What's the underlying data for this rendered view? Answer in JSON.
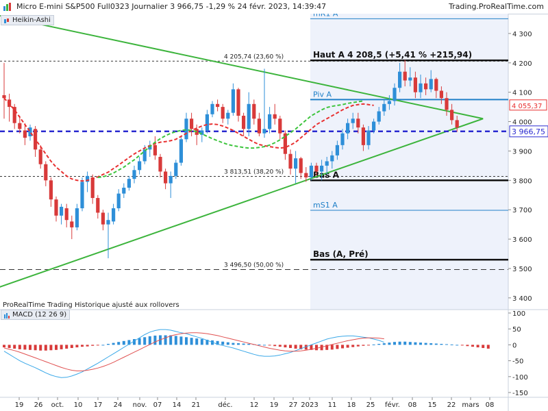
{
  "header": {
    "title": "Micro E-mini S&P500 Full0323 Journalier 3 966,75 -1,29 % 24 févr. 2023, 14:39:47",
    "site": "Trading.ProRealTime.com"
  },
  "main_panel": {
    "tag": "Heikin-Ashi",
    "footer_note": "ProRealTime Trading  Historique ajusté aux rollovers"
  },
  "macd_panel": {
    "tag": "MACD (12 26 9)"
  },
  "colors": {
    "bull": "#2e8fd8",
    "bear": "#d83a3a",
    "trend": "#3cb43c",
    "ma_red": "#e83030",
    "ma_green": "#3cc43c",
    "level_blue": "#2080c8",
    "price_line": "#2a2ad0",
    "macd_line": "#3aa8e8",
    "signal_line": "#e05050"
  },
  "chart_data": [
    {
      "type": "candlestick",
      "subtype": "heikin-ashi",
      "y_axis_ticks": [
        "3 400",
        "3 500",
        "3 600",
        "3 700",
        "3 800",
        "3 900",
        "4 000",
        "4 100",
        "4 200",
        "4 300"
      ],
      "ylim": [
        3360,
        4365
      ],
      "x_ticks": [
        "19",
        "26",
        "oct.",
        "10",
        "17",
        "24",
        "nov.",
        "07",
        "14",
        "21",
        "déc.",
        "12",
        "19",
        "27",
        "2023",
        "11",
        "18",
        "25",
        "févr.",
        "08",
        "15",
        "22",
        "mars",
        "08"
      ],
      "current_price_label": "3 966,75",
      "current_price": 3966.75,
      "ma_label": "4 055,37",
      "ma_value": 4055.37,
      "levels": [
        {
          "name": "mR1 A",
          "value": 4350
        },
        {
          "name": "Haut A 4 208,5 (+5,41 % +215,94)",
          "value": 4208.5
        },
        {
          "name": "Piv A",
          "value": 4075
        },
        {
          "name": "Bas A",
          "value": 3800
        },
        {
          "name": "mS1 A",
          "value": 3698
        },
        {
          "name": "Bas (A, Pré)",
          "value": 3530
        }
      ],
      "fibonacci": [
        {
          "label": "4 205,74 (23,60 %)",
          "value": 4205.74
        },
        {
          "label": "3 813,51 (38,20 %)",
          "value": 3813.51
        },
        {
          "label": "3 496,50 (50,00 %)",
          "value": 3496.5
        }
      ],
      "candles": [
        {
          "o": 4090,
          "h": 4200,
          "l": 4010,
          "c": 4080
        },
        {
          "o": 4075,
          "h": 4095,
          "l": 4000,
          "c": 4050
        },
        {
          "o": 4050,
          "h": 4060,
          "l": 3975,
          "c": 3995
        },
        {
          "o": 3995,
          "h": 4020,
          "l": 3960,
          "c": 3975
        },
        {
          "o": 3970,
          "h": 3995,
          "l": 3920,
          "c": 3945
        },
        {
          "o": 3950,
          "h": 3990,
          "l": 3935,
          "c": 3980
        },
        {
          "o": 3975,
          "h": 3985,
          "l": 3880,
          "c": 3905
        },
        {
          "o": 3905,
          "h": 3920,
          "l": 3840,
          "c": 3855
        },
        {
          "o": 3855,
          "h": 3865,
          "l": 3780,
          "c": 3800
        },
        {
          "o": 3800,
          "h": 3810,
          "l": 3710,
          "c": 3735
        },
        {
          "o": 3735,
          "h": 3745,
          "l": 3660,
          "c": 3680
        },
        {
          "o": 3680,
          "h": 3720,
          "l": 3650,
          "c": 3710
        },
        {
          "o": 3705,
          "h": 3720,
          "l": 3640,
          "c": 3665
        },
        {
          "o": 3660,
          "h": 3680,
          "l": 3600,
          "c": 3640
        },
        {
          "o": 3640,
          "h": 3720,
          "l": 3630,
          "c": 3705
        },
        {
          "o": 3705,
          "h": 3810,
          "l": 3695,
          "c": 3795
        },
        {
          "o": 3795,
          "h": 3830,
          "l": 3760,
          "c": 3815
        },
        {
          "o": 3810,
          "h": 3820,
          "l": 3720,
          "c": 3740
        },
        {
          "o": 3740,
          "h": 3750,
          "l": 3670,
          "c": 3690
        },
        {
          "o": 3690,
          "h": 3700,
          "l": 3630,
          "c": 3650
        },
        {
          "o": 3650,
          "h": 3690,
          "l": 3535,
          "c": 3665
        },
        {
          "o": 3660,
          "h": 3720,
          "l": 3650,
          "c": 3705
        },
        {
          "o": 3705,
          "h": 3770,
          "l": 3695,
          "c": 3755
        },
        {
          "o": 3755,
          "h": 3790,
          "l": 3740,
          "c": 3775
        },
        {
          "o": 3775,
          "h": 3815,
          "l": 3765,
          "c": 3805
        },
        {
          "o": 3805,
          "h": 3850,
          "l": 3790,
          "c": 3835
        },
        {
          "o": 3835,
          "h": 3880,
          "l": 3820,
          "c": 3865
        },
        {
          "o": 3865,
          "h": 3920,
          "l": 3855,
          "c": 3905
        },
        {
          "o": 3905,
          "h": 3935,
          "l": 3880,
          "c": 3920
        },
        {
          "o": 3920,
          "h": 3950,
          "l": 3870,
          "c": 3885
        },
        {
          "o": 3880,
          "h": 3890,
          "l": 3810,
          "c": 3830
        },
        {
          "o": 3830,
          "h": 3840,
          "l": 3770,
          "c": 3790
        },
        {
          "o": 3790,
          "h": 3830,
          "l": 3740,
          "c": 3815
        },
        {
          "o": 3815,
          "h": 3870,
          "l": 3805,
          "c": 3860
        },
        {
          "o": 3860,
          "h": 3950,
          "l": 3850,
          "c": 3940
        },
        {
          "o": 3940,
          "h": 4030,
          "l": 3930,
          "c": 4010
        },
        {
          "o": 4010,
          "h": 4030,
          "l": 3950,
          "c": 3975
        },
        {
          "o": 3975,
          "h": 3990,
          "l": 3920,
          "c": 3955
        },
        {
          "o": 3955,
          "h": 3980,
          "l": 3930,
          "c": 3970
        },
        {
          "o": 3970,
          "h": 4040,
          "l": 3960,
          "c": 4025
        },
        {
          "o": 4025,
          "h": 4070,
          "l": 4015,
          "c": 4060
        },
        {
          "o": 4060,
          "h": 4075,
          "l": 4035,
          "c": 4050
        },
        {
          "o": 4050,
          "h": 4060,
          "l": 3995,
          "c": 4010
        },
        {
          "o": 4010,
          "h": 4040,
          "l": 3990,
          "c": 4030
        },
        {
          "o": 4030,
          "h": 4130,
          "l": 4020,
          "c": 4110
        },
        {
          "o": 4110,
          "h": 4115,
          "l": 4000,
          "c": 4020
        },
        {
          "o": 4020,
          "h": 4030,
          "l": 3950,
          "c": 3975
        },
        {
          "o": 3975,
          "h": 4100,
          "l": 3950,
          "c": 4060
        },
        {
          "o": 4060,
          "h": 4075,
          "l": 3990,
          "c": 4010
        },
        {
          "o": 4010,
          "h": 4030,
          "l": 3950,
          "c": 3960
        },
        {
          "o": 3960,
          "h": 4180,
          "l": 3945,
          "c": 3975
        },
        {
          "o": 3975,
          "h": 4050,
          "l": 3960,
          "c": 4025
        },
        {
          "o": 4025,
          "h": 4060,
          "l": 3990,
          "c": 4010
        },
        {
          "o": 4010,
          "h": 4020,
          "l": 3940,
          "c": 3960
        },
        {
          "o": 3960,
          "h": 3970,
          "l": 3870,
          "c": 3890
        },
        {
          "o": 3890,
          "h": 3905,
          "l": 3820,
          "c": 3840
        },
        {
          "o": 3840,
          "h": 3900,
          "l": 3790,
          "c": 3875
        },
        {
          "o": 3875,
          "h": 3880,
          "l": 3805,
          "c": 3825
        },
        {
          "o": 3825,
          "h": 3845,
          "l": 3795,
          "c": 3810
        },
        {
          "o": 3810,
          "h": 3860,
          "l": 3800,
          "c": 3850
        },
        {
          "o": 3850,
          "h": 3860,
          "l": 3815,
          "c": 3830
        },
        {
          "o": 3830,
          "h": 3870,
          "l": 3800,
          "c": 3850
        },
        {
          "o": 3850,
          "h": 3880,
          "l": 3820,
          "c": 3865
        },
        {
          "o": 3865,
          "h": 3900,
          "l": 3840,
          "c": 3885
        },
        {
          "o": 3885,
          "h": 3935,
          "l": 3870,
          "c": 3920
        },
        {
          "o": 3920,
          "h": 3975,
          "l": 3905,
          "c": 3960
        },
        {
          "o": 3960,
          "h": 4010,
          "l": 3940,
          "c": 3995
        },
        {
          "o": 3995,
          "h": 4030,
          "l": 3975,
          "c": 4010
        },
        {
          "o": 4010,
          "h": 4030,
          "l": 3960,
          "c": 3980
        },
        {
          "o": 3980,
          "h": 3990,
          "l": 3900,
          "c": 3920
        },
        {
          "o": 3920,
          "h": 3985,
          "l": 3905,
          "c": 3970
        },
        {
          "o": 3970,
          "h": 4010,
          "l": 3960,
          "c": 4000
        },
        {
          "o": 4000,
          "h": 4050,
          "l": 3990,
          "c": 4035
        },
        {
          "o": 4035,
          "h": 4075,
          "l": 4020,
          "c": 4060
        },
        {
          "o": 4060,
          "h": 4090,
          "l": 4040,
          "c": 4070
        },
        {
          "o": 4070,
          "h": 4130,
          "l": 4055,
          "c": 4115
        },
        {
          "o": 4115,
          "h": 4200,
          "l": 4100,
          "c": 4170
        },
        {
          "o": 4170,
          "h": 4210,
          "l": 4120,
          "c": 4140
        },
        {
          "o": 4140,
          "h": 4185,
          "l": 4120,
          "c": 4150
        },
        {
          "o": 4150,
          "h": 4170,
          "l": 4080,
          "c": 4100
        },
        {
          "o": 4100,
          "h": 4160,
          "l": 4080,
          "c": 4130
        },
        {
          "o": 4130,
          "h": 4150,
          "l": 4090,
          "c": 4110
        },
        {
          "o": 4110,
          "h": 4175,
          "l": 4100,
          "c": 4145
        },
        {
          "o": 4145,
          "h": 4150,
          "l": 4080,
          "c": 4105
        },
        {
          "o": 4105,
          "h": 4120,
          "l": 4060,
          "c": 4080
        },
        {
          "o": 4080,
          "h": 4100,
          "l": 4020,
          "c": 4040
        },
        {
          "o": 4040,
          "h": 4060,
          "l": 3990,
          "c": 4005
        },
        {
          "o": 4005,
          "h": 4020,
          "l": 3965,
          "c": 3980
        }
      ],
      "ma_red": [
        4080,
        4060,
        4040,
        4015,
        3990,
        3965,
        3940,
        3915,
        3890,
        3865,
        3845,
        3830,
        3815,
        3805,
        3800,
        3798,
        3800,
        3805,
        3812,
        3820,
        3828,
        3840,
        3852,
        3865,
        3878,
        3890,
        3900,
        3910,
        3918,
        3925,
        3930,
        3932,
        3935,
        3940,
        3950,
        3960,
        3970,
        3978,
        3985,
        3990,
        3992,
        3990,
        3985,
        3978,
        3970,
        3960,
        3950,
        3940,
        3930,
        3922,
        3918,
        3915,
        3912,
        3910,
        3912,
        3920,
        3930,
        3945,
        3960,
        3975,
        3990,
        4000,
        4010,
        4020,
        4030,
        4040,
        4048,
        4055,
        4058,
        4060,
        4058,
        4055
      ],
      "ma_red_start": 0,
      "ma_green": [
        3810,
        3812,
        3818,
        3825,
        3835,
        3845,
        3858,
        3870,
        3885,
        3900,
        3915,
        3930,
        3942,
        3952,
        3960,
        3966,
        3970,
        3972,
        3970,
        3965,
        3958,
        3950,
        3942,
        3935,
        3928,
        3922,
        3918,
        3915,
        3912,
        3910,
        3910,
        3912,
        3915,
        3920,
        3928,
        3938,
        3950,
        3962,
        3975,
        3990,
        4005,
        4020,
        4030,
        4040,
        4048,
        4052,
        4055,
        4058,
        4062,
        4065,
        4068,
        4070
      ],
      "ma_green_start": 18,
      "trendlines": [
        {
          "x1": -2,
          "y1": 4365,
          "x2": 92,
          "y2": 4010
        },
        {
          "x1": -2,
          "y1": 3430,
          "x2": 92,
          "y2": 4010
        }
      ]
    },
    {
      "type": "bar",
      "name": "MACD (12 26 9)",
      "y_axis_ticks": [
        "100",
        "50",
        "0",
        "-50",
        "-100",
        "-150"
      ],
      "ylim": [
        -165,
        115
      ],
      "histogram": [
        -8,
        -10,
        -12,
        -14,
        -15,
        -16,
        -17,
        -18,
        -18,
        -17,
        -16,
        -14,
        -12,
        -10,
        -8,
        -6,
        -5,
        -3,
        -2,
        0,
        3,
        6,
        9,
        12,
        15,
        18,
        21,
        24,
        27,
        29,
        30,
        30,
        30,
        28,
        26,
        24,
        22,
        20,
        18,
        16,
        14,
        12,
        10,
        8,
        6,
        5,
        4,
        3,
        2,
        1,
        0,
        -2,
        -4,
        -6,
        -8,
        -10,
        -12,
        -14,
        -15,
        -16,
        -17,
        -17,
        -16,
        -15,
        -13,
        -11,
        -9,
        -7,
        -5,
        -3,
        -1,
        1,
        3,
        5,
        7,
        9,
        10,
        10,
        9,
        8,
        7,
        6,
        5,
        4,
        3,
        2,
        1,
        0,
        -2,
        -4,
        -6,
        -8,
        -10,
        -12
      ],
      "macd_line": [
        -20,
        -30,
        -40,
        -50,
        -58,
        -65,
        -72,
        -80,
        -88,
        -95,
        -100,
        -103,
        -102,
        -98,
        -92,
        -85,
        -76,
        -67,
        -58,
        -48,
        -38,
        -28,
        -18,
        -8,
        2,
        12,
        22,
        32,
        40,
        45,
        48,
        48,
        46,
        42,
        38,
        35,
        30,
        25,
        20,
        14,
        8,
        2,
        -2,
        -6,
        -10,
        -15,
        -20,
        -25,
        -30,
        -34,
        -36,
        -36,
        -35,
        -32,
        -28,
        -24,
        -18,
        -12,
        -6,
        0,
        6,
        12,
        18,
        22,
        25,
        27,
        28,
        28,
        26,
        24,
        22,
        18,
        14,
        8
      ],
      "signal_line": [
        -10,
        -14,
        -18,
        -23,
        -29,
        -35,
        -41,
        -47,
        -53,
        -59,
        -65,
        -71,
        -76,
        -80,
        -82,
        -82,
        -80,
        -77,
        -73,
        -68,
        -62,
        -55,
        -47,
        -39,
        -31,
        -23,
        -15,
        -7,
        1,
        9,
        16,
        22,
        28,
        32,
        35,
        37,
        38,
        38,
        37,
        35,
        32,
        29,
        25,
        21,
        17,
        13,
        9,
        5,
        1,
        -3,
        -7,
        -11,
        -14,
        -17,
        -19,
        -20,
        -20,
        -19,
        -17,
        -14,
        -11,
        -7,
        -3,
        1,
        5,
        9,
        13,
        16,
        19,
        21,
        22,
        22,
        21,
        19
      ]
    }
  ]
}
